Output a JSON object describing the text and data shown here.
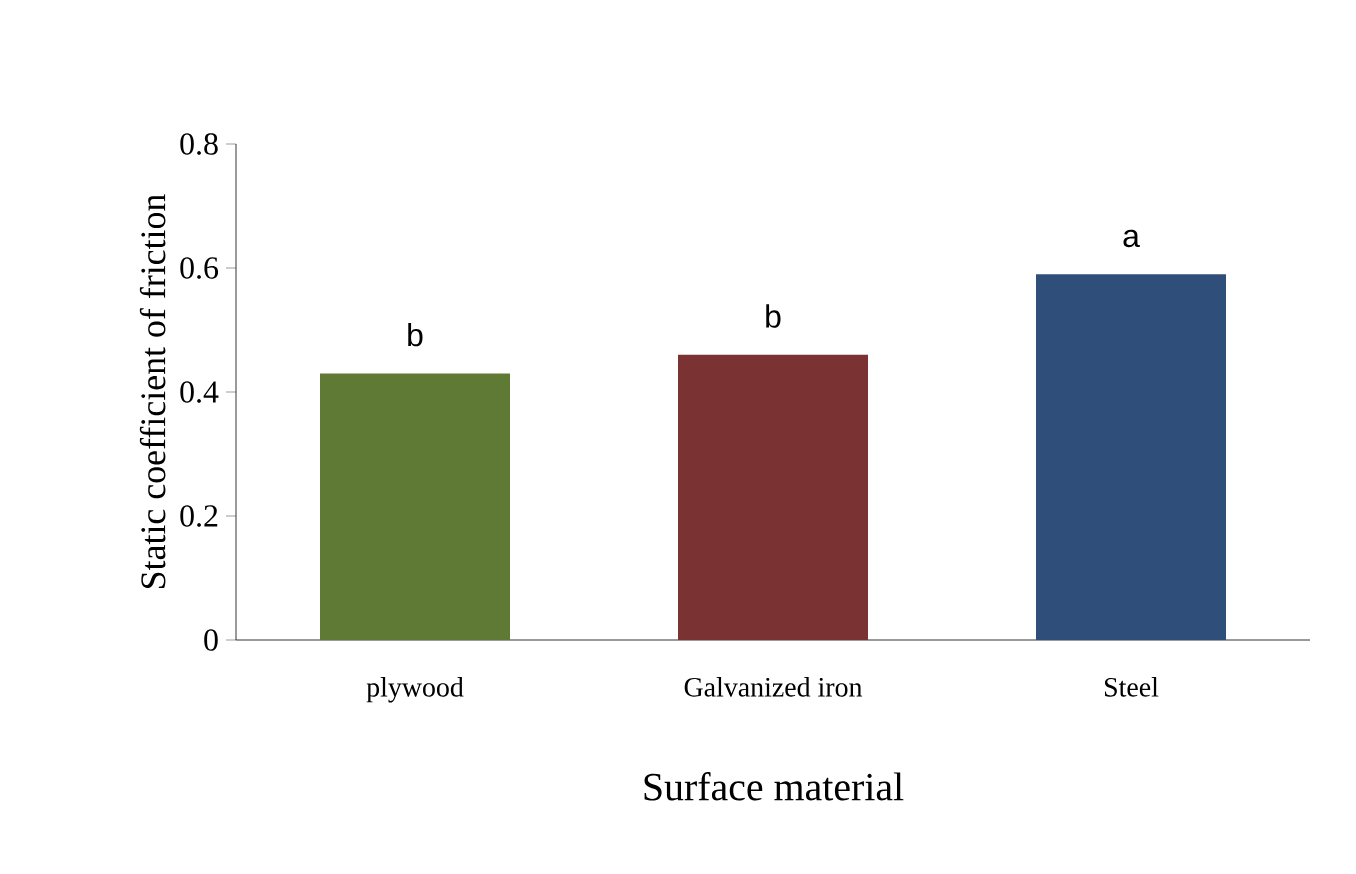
{
  "chart_data": {
    "type": "bar",
    "xlabel": "Surface material",
    "ylabel": "Static coefficient of friction",
    "categories": [
      "plywood",
      "Galvanized iron",
      "Steel"
    ],
    "values": [
      0.43,
      0.46,
      0.59
    ],
    "colors": [
      "#5f7a35",
      "#7b3232",
      "#2f4f7a"
    ],
    "ylim": [
      0,
      0.8
    ],
    "yticks": [
      0,
      0.2,
      0.4,
      0.6,
      0.8
    ],
    "annotations": [
      {
        "text": "b",
        "x": "plywood",
        "y": 0.43
      },
      {
        "text": "b",
        "x": "Galvanized iron",
        "y": 0.46
      },
      {
        "text": "a",
        "x": "Steel",
        "y": 0.59
      }
    ],
    "grid": false
  }
}
